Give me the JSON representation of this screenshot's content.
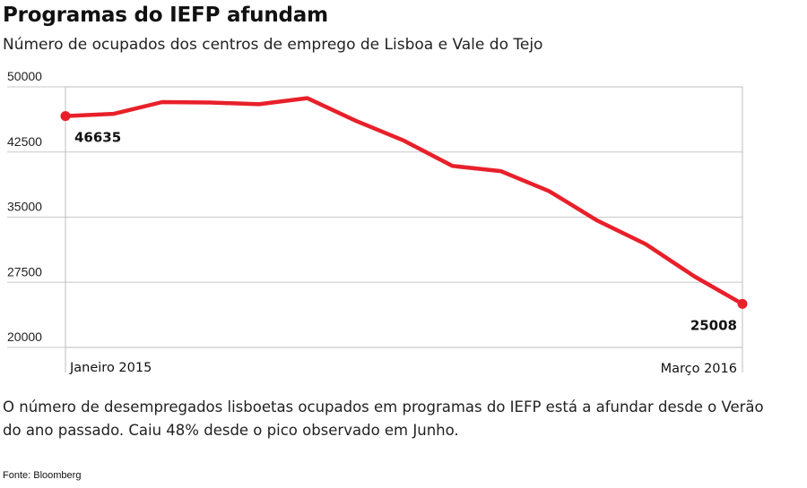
{
  "title": "Programas do IEFP afundam",
  "subtitle": "Número de ocupados dos centros de emprego de Lisboa e Vale do Tejo",
  "caption": "O número de desempregados lisboetas ocupados em programas do IEFP está a afundar desde o Verão do ano passado. Caiu 48% desde o pico observado em Junho.",
  "source": "Fonte: Bloomberg",
  "colors": {
    "line": "#e8202a",
    "grid": "#c8c8c8",
    "frame": "#bdbdbd"
  },
  "chart_data": {
    "type": "line",
    "title": "Programas do IEFP afundam",
    "subtitle": "Número de ocupados dos centros de emprego de Lisboa e Vale do Tejo",
    "x": [
      "2015-01",
      "2015-02",
      "2015-03",
      "2015-04",
      "2015-05",
      "2015-06",
      "2015-07",
      "2015-08",
      "2015-09",
      "2015-10",
      "2015-11",
      "2015-12",
      "2016-01",
      "2016-02",
      "2016-03"
    ],
    "series": [
      {
        "values": [
          46635,
          46900,
          48250,
          48200,
          48000,
          48700,
          46100,
          43800,
          40900,
          40300,
          38000,
          34600,
          31900,
          28200,
          25008
        ]
      }
    ],
    "x_tick_labels": [
      "Janeiro 2015",
      "Março 2016"
    ],
    "y_ticks": [
      20000,
      27500,
      35000,
      42500,
      50000
    ],
    "y_tick_labels": [
      "20000",
      "27500",
      "35000",
      "42500",
      "50000"
    ],
    "ylim": [
      20000,
      50000
    ],
    "data_labels": [
      {
        "index": 0,
        "text": "46635"
      },
      {
        "index": 14,
        "text": "25008"
      }
    ],
    "grid": true
  }
}
